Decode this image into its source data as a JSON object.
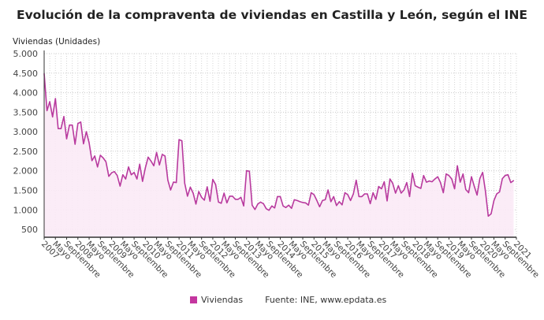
{
  "title": "Evolución de la compraventa de viviendas en Castilla y León, según el INE",
  "source": "Fuente: INE, www.epdata.es",
  "chart_data": {
    "type": "area",
    "ylabel": "Viviendas (Unidades)",
    "xlabel": "",
    "ylim": [
      300,
      5000
    ],
    "yticks": [
      500,
      1000,
      1500,
      2000,
      2500,
      3000,
      3500,
      4000,
      4500,
      5000
    ],
    "ytick_labels": [
      "500",
      "1.000",
      "1.500",
      "2.000",
      "2.500",
      "3.000",
      "3.500",
      "4.000",
      "4.500",
      "5.000"
    ],
    "x_start": "2007-01",
    "x_frequency": "monthly",
    "xtick_labels": [
      "2007",
      "Mayo",
      "Septiembre",
      "2008",
      "Mayo",
      "Septiembre",
      "2009",
      "Mayo",
      "Septiembre",
      "2010",
      "Mayo",
      "Septiembre",
      "2011",
      "Mayo",
      "Septiembre",
      "2012",
      "Mayo",
      "Septiembre",
      "2013",
      "Mayo",
      "Septiembre",
      "2014",
      "Mayo",
      "Septiembre",
      "2015",
      "Mayo",
      "Septiembre",
      "2016",
      "Mayo",
      "Septiembre",
      "2017",
      "Mayo",
      "Septiembre",
      "2018",
      "Mayo",
      "Septiembre",
      "2019",
      "Mayo",
      "Septiembre",
      "2020",
      "Mayo",
      "Septiembre",
      "2021"
    ],
    "grid": true,
    "legend_position": "bottom",
    "series": [
      {
        "name": "Viviendas",
        "color": "#b83a9e",
        "fill": "#fbeaf6",
        "values": [
          4490,
          3540,
          3770,
          3380,
          3850,
          3080,
          3080,
          3390,
          2820,
          3170,
          3170,
          2680,
          3210,
          3250,
          2690,
          3000,
          2720,
          2260,
          2380,
          2100,
          2400,
          2330,
          2230,
          1860,
          1950,
          1980,
          1880,
          1610,
          1900,
          1790,
          2100,
          1900,
          1960,
          1790,
          2170,
          1730,
          2080,
          2350,
          2250,
          2130,
          2470,
          2150,
          2420,
          2380,
          1760,
          1510,
          1710,
          1700,
          2800,
          2770,
          1680,
          1350,
          1580,
          1430,
          1150,
          1470,
          1320,
          1250,
          1590,
          1220,
          1780,
          1650,
          1200,
          1170,
          1430,
          1180,
          1350,
          1350,
          1270,
          1270,
          1320,
          1100,
          2000,
          1990,
          1120,
          1010,
          1150,
          1200,
          1160,
          1030,
          990,
          1100,
          1050,
          1340,
          1340,
          1100,
          1060,
          1120,
          1040,
          1260,
          1240,
          1210,
          1190,
          1180,
          1120,
          1440,
          1390,
          1240,
          1080,
          1240,
          1260,
          1510,
          1210,
          1340,
          1110,
          1210,
          1130,
          1440,
          1390,
          1240,
          1410,
          1760,
          1340,
          1340,
          1410,
          1410,
          1160,
          1440,
          1270,
          1600,
          1540,
          1720,
          1230,
          1790,
          1680,
          1430,
          1620,
          1430,
          1510,
          1700,
          1340,
          1940,
          1620,
          1580,
          1550,
          1880,
          1710,
          1740,
          1720,
          1790,
          1850,
          1700,
          1440,
          1920,
          1880,
          1790,
          1540,
          2130,
          1710,
          1920,
          1520,
          1440,
          1850,
          1610,
          1380,
          1800,
          1960,
          1470,
          840,
          900,
          1240,
          1410,
          1460,
          1800,
          1880,
          1900,
          1700,
          1750
        ]
      }
    ]
  }
}
